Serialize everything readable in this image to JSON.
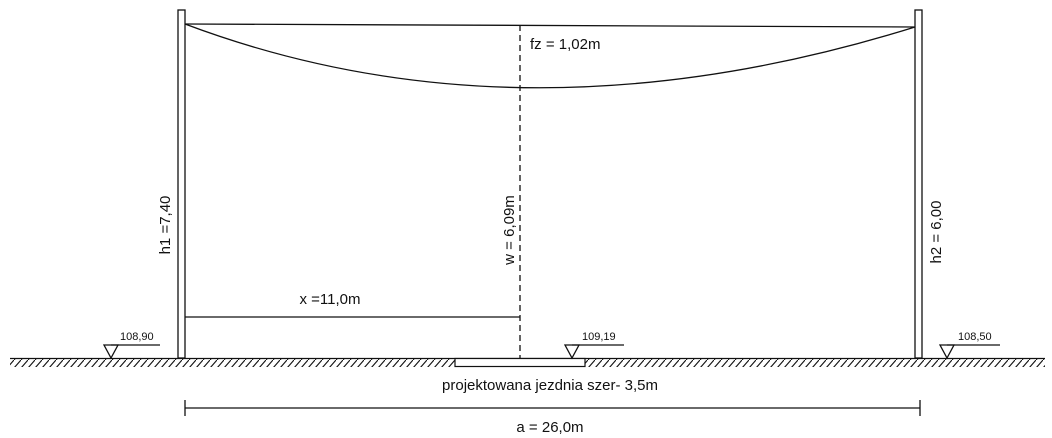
{
  "labels": {
    "sag": "fz  = 1,02m",
    "h1": "h1 =7,40",
    "w": "w = 6,09m",
    "h2": "h2 = 6,00",
    "x": "x =11,0m",
    "level_left": "108,90",
    "level_mid": "109,19",
    "level_right": "108,50",
    "road": "projektowana jezdnia szer- 3,5m",
    "span": "a  = 26,0m"
  }
}
